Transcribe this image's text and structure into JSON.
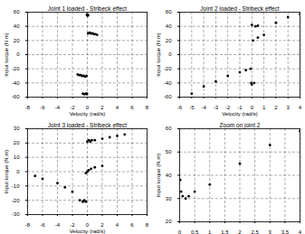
{
  "chart_data": [
    {
      "type": "scatter",
      "title": "Joint 1 loaded - Stribeck effect",
      "x_label": "Velocity (rad/s)",
      "y_label": "Input torque (N.m)",
      "x": [
        -0.05,
        0,
        0.05,
        0.1,
        0.1,
        0.3,
        0.5,
        0.7,
        0.9,
        1.1,
        1.3,
        -0.1,
        -0.3,
        -0.5,
        -0.7,
        -0.9,
        -1.1,
        -1.3,
        -0.05,
        -0.1,
        -0.2,
        -0.4,
        -0.6
      ],
      "values": [
        56,
        57,
        55,
        56,
        30,
        31,
        30,
        30,
        29,
        29,
        28,
        -30,
        -31,
        -30,
        -30,
        -29,
        -29,
        -28,
        -55,
        -56,
        -55,
        -56,
        -55
      ],
      "xlim": [
        -8,
        8
      ],
      "ylim": [
        -60,
        60
      ],
      "xticks": [
        -8,
        -6,
        -4,
        -2,
        0,
        2,
        4,
        6,
        8
      ],
      "yticks": [
        -60,
        -40,
        -20,
        0,
        20,
        40,
        60
      ],
      "grid": true,
      "color": "#000000",
      "marker": "circle"
    },
    {
      "type": "scatter",
      "title": "Joint 2 loaded - Stribeck effect",
      "x_label": "Velocity (rad/s)",
      "y_label": "Input torque (N.m)",
      "x": [
        -5,
        -4,
        -3,
        -2,
        -1,
        -0.5,
        -0.1,
        -0.05,
        0,
        0.2,
        0,
        0.3,
        0.5,
        0.1,
        0.5,
        1,
        2,
        3,
        4
      ],
      "values": [
        -55,
        -45,
        -38,
        -30,
        -25,
        -22,
        -20,
        -40,
        -42,
        -40,
        42,
        40,
        41,
        20,
        24,
        28,
        45,
        53,
        57
      ],
      "xlim": [
        -6,
        4
      ],
      "ylim": [
        -60,
        60
      ],
      "xticks": [
        -6,
        -5,
        -4,
        -3,
        -2,
        -1,
        0,
        1,
        2,
        3,
        4
      ],
      "yticks": [
        -60,
        -40,
        -20,
        0,
        20,
        40,
        60
      ],
      "grid": true,
      "color": "#000000",
      "marker": "circle"
    },
    {
      "type": "scatter",
      "title": "Joint 3 loaded - Stribeck effect",
      "x_label": "Velocity (rad/s)",
      "y_label": "Input torque (N.m)",
      "x": [
        0,
        0.2,
        0.4,
        0.6,
        1,
        2,
        3,
        4,
        5,
        -0.2,
        0,
        0.2,
        0.5,
        1,
        2,
        -0.2,
        -0.4,
        -0.6,
        -1,
        -2,
        -3,
        -4,
        -6,
        -7
      ],
      "values": [
        21,
        22,
        21,
        22,
        22,
        23,
        24,
        25,
        26,
        -1,
        0,
        1,
        2,
        3,
        4,
        -21,
        -20,
        -21,
        -20,
        -14,
        -11,
        -8,
        -5,
        -3
      ],
      "xlim": [
        -8,
        8
      ],
      "ylim": [
        -30,
        30
      ],
      "xticks": [
        -8,
        -6,
        -4,
        -2,
        0,
        2,
        4,
        6,
        8
      ],
      "yticks": [
        -30,
        -20,
        -10,
        0,
        10,
        20,
        30
      ],
      "grid": true,
      "color": "#000000",
      "marker": "circle"
    },
    {
      "type": "scatter",
      "title": "Zoom on joint 2",
      "x_label": "",
      "y_label": "Input torque (N.m)",
      "x": [
        0.02,
        0.05,
        0.1,
        0.2,
        0.3,
        0.5,
        1,
        2,
        3,
        4
      ],
      "values": [
        38,
        33,
        31,
        30,
        31,
        33,
        36,
        45,
        53,
        59
      ],
      "xlim": [
        0,
        4
      ],
      "ylim": [
        20,
        60
      ],
      "xticks": [
        0,
        0.5,
        1,
        1.5,
        2,
        2.5,
        3,
        3.5,
        4
      ],
      "yticks": [
        20,
        30,
        40,
        50,
        60
      ],
      "grid": true,
      "color": "#000000",
      "marker": "circle"
    }
  ]
}
